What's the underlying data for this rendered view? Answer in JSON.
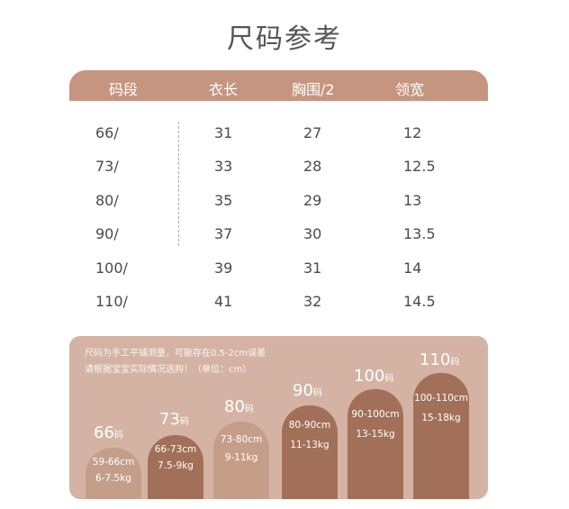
{
  "title": "尺码参考",
  "table": {
    "headers": [
      "码段",
      "衣长",
      "胸围/2",
      "领宽"
    ],
    "rows": [
      [
        "66/",
        "31",
        "27",
        "12"
      ],
      [
        "73/",
        "33",
        "28",
        "12.5"
      ],
      [
        "80/",
        "35",
        "29",
        "13"
      ],
      [
        "90/",
        "37",
        "30",
        "13.5"
      ],
      [
        "100/",
        "39",
        "31",
        "14"
      ],
      [
        "110/",
        "41",
        "32",
        "14.5"
      ]
    ]
  },
  "panel": {
    "note_line1": "尺码为手工平铺测量，可能存在0.5-2cm误差",
    "note_line2": "请根据宝宝实际情况选购！（单位：cm）",
    "sizes": [
      {
        "num": "66",
        "unit": "码",
        "height": "59-66cm",
        "weight": "6-7.5kg"
      },
      {
        "num": "73",
        "unit": "码",
        "height": "66-73cm",
        "weight": "7.5-9kg"
      },
      {
        "num": "80",
        "unit": "码",
        "height": "73-80cm",
        "weight": "9-11kg"
      },
      {
        "num": "90",
        "unit": "码",
        "height": "80-90cm",
        "weight": "11-13kg"
      },
      {
        "num": "100",
        "unit": "码",
        "height": "90-100cm",
        "weight": "13-15kg"
      },
      {
        "num": "110",
        "unit": "码",
        "height": "100-110cm",
        "weight": "15-18kg"
      }
    ]
  },
  "colors": {
    "header": "#c6957f",
    "panel": "#d4b3a4",
    "arch_dark": "#a27058",
    "arch_light": "#c59e8a"
  }
}
